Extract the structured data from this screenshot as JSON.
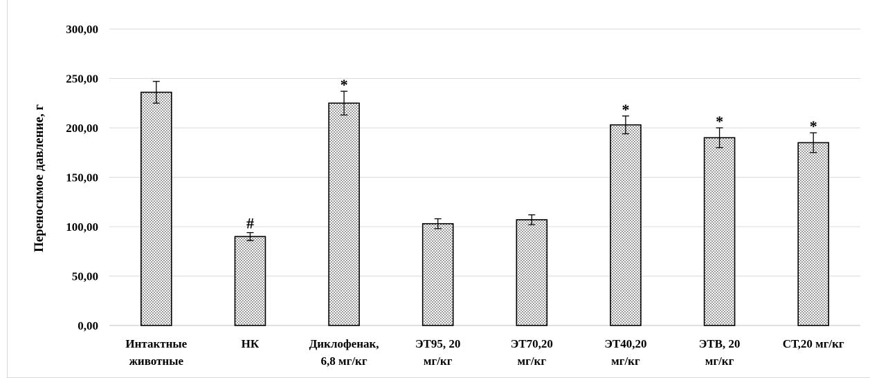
{
  "chart_data": {
    "type": "bar",
    "ylabel": "Переносимое  давление,  г",
    "ylim": [
      0,
      300
    ],
    "yticks": [
      "0,00",
      "50,00",
      "100,00",
      "150,00",
      "200,00",
      "250,00",
      "300,00"
    ],
    "grid": true,
    "categories": [
      [
        "Интактные",
        "животные"
      ],
      [
        "НК"
      ],
      [
        "Диклофенак,",
        "6,8 мг/кг"
      ],
      [
        "ЭТ95, 20",
        "мг/кг"
      ],
      [
        "ЭТ70,20",
        "мг/кг"
      ],
      [
        "ЭТ40,20",
        "мг/кг"
      ],
      [
        "ЭТВ, 20",
        "мг/кг"
      ],
      [
        "СТ,20  мг/кг"
      ]
    ],
    "values": [
      236,
      90,
      225,
      103,
      107,
      203,
      190,
      185
    ],
    "errors": [
      11,
      4,
      12,
      5,
      5,
      9,
      10,
      10
    ],
    "annotations": [
      "",
      "#",
      "*",
      "",
      "",
      "*",
      "*",
      "*"
    ],
    "bar_color": "#d9d9d9"
  }
}
